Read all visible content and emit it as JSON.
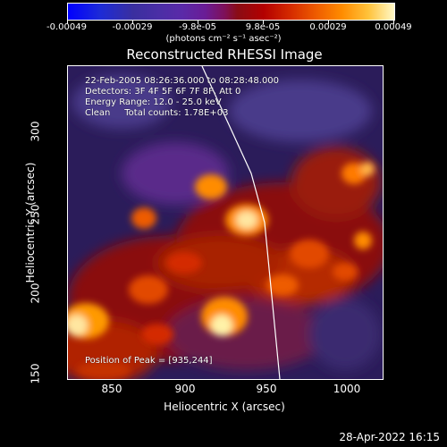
{
  "colorbar": {
    "ticks": [
      "-0.00049",
      "-0.00029",
      "-9.8e-05",
      "9.8e-05",
      "0.00029",
      "0.00049"
    ],
    "units": "(photons cm⁻² s⁻¹ asec⁻²)",
    "colors": [
      "#0000ff",
      "#5a2aa8",
      "#8a0c14",
      "#ff8c00",
      "#fff9c8"
    ]
  },
  "plot": {
    "title": "Reconstructed RHESSI Image",
    "xlabel": "Heliocentric X (arcsec)",
    "ylabel": "Heliocentric Y (arcsec)",
    "xticks": [
      "850",
      "900",
      "950",
      "1000"
    ],
    "yticks": [
      "300",
      "250",
      "200",
      "150"
    ],
    "annotations": {
      "time": "22-Feb-2005 08:26:36.000 to 08:28:48.000",
      "detectors": "Detectors: 3F 4F 5F 6F 7F 8F, Att 0",
      "energy": "Energy Range: 12.0 - 25.0 keV",
      "clean": "Clean     Total counts: 1.78E+03",
      "peak": "Position of Peak = [935,244]"
    }
  },
  "timestamp": "28-Apr-2022 16:15"
}
